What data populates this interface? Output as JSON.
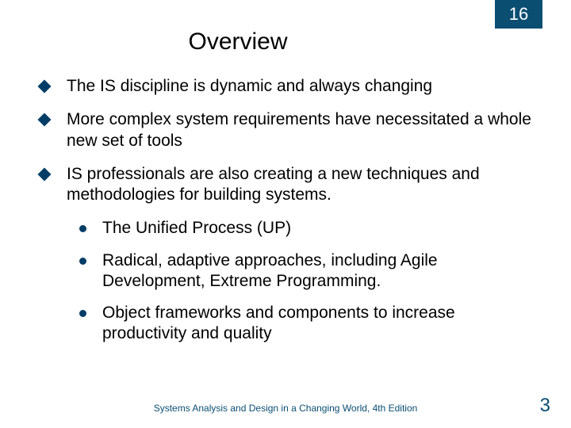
{
  "colors": {
    "badge_bg": "#0a4e72",
    "diamond": "#003d66",
    "disc": "#003d66",
    "footer": "#0a4e72",
    "page_num": "#0a4e72",
    "text": "#000000"
  },
  "chapter_number": "16",
  "title": "Overview",
  "bullets": [
    {
      "text": "The IS discipline is dynamic and always changing"
    },
    {
      "text": "More complex system requirements have necessitated a whole new set of tools"
    },
    {
      "text": "IS professionals are also creating a new techniques and methodologies for building systems.",
      "sub": [
        "The Unified Process (UP)",
        "Radical, adaptive approaches, including Agile Development, Extreme Programming.",
        "Object frameworks and components to increase productivity and quality"
      ]
    }
  ],
  "footer": "Systems Analysis and Design in a Changing World, 4th Edition",
  "page_number": "3"
}
